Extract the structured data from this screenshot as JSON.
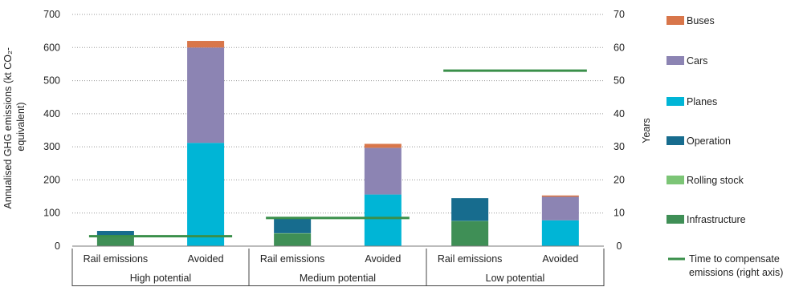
{
  "chart_data": {
    "type": "bar",
    "stacked": true,
    "groups": [
      "High potential",
      "Medium potential",
      "Low potential"
    ],
    "categories": [
      "Rail emissions",
      "Avoided"
    ],
    "ylabel": "Annualised GHG emissions (kt CO₂-equivalent)",
    "ylabel_lines": [
      "Annualised GHG emissions (kt CO₂-",
      "equivalent)"
    ],
    "y2label": "Years",
    "ylim": [
      0,
      700
    ],
    "y_ticks": [
      0,
      100,
      200,
      300,
      400,
      500,
      600,
      700
    ],
    "y2lim": [
      0,
      70
    ],
    "y2_ticks": [
      0,
      10,
      20,
      30,
      40,
      50,
      60,
      70
    ],
    "grid": true,
    "legend_position": "right",
    "series": [
      {
        "name": "Infrastructure",
        "color": "#3f8f56",
        "values": [
          [
            30,
            0
          ],
          [
            38,
            0
          ],
          [
            75,
            0
          ]
        ]
      },
      {
        "name": "Rolling stock",
        "color": "#7cc576",
        "values": [
          [
            1,
            0
          ],
          [
            1,
            0
          ],
          [
            1,
            0
          ]
        ]
      },
      {
        "name": "Operation",
        "color": "#176c8e",
        "values": [
          [
            15,
            0
          ],
          [
            49,
            0
          ],
          [
            69,
            0
          ]
        ]
      },
      {
        "name": "Planes",
        "color": "#00b5d6",
        "values": [
          [
            0,
            312
          ],
          [
            0,
            156
          ],
          [
            0,
            78
          ]
        ]
      },
      {
        "name": "Cars",
        "color": "#8c84b3",
        "values": [
          [
            0,
            288
          ],
          [
            0,
            141
          ],
          [
            0,
            71
          ]
        ]
      },
      {
        "name": "Buses",
        "color": "#d8764a",
        "values": [
          [
            0,
            20
          ],
          [
            0,
            12
          ],
          [
            0,
            4
          ]
        ]
      }
    ],
    "line_series": {
      "name": "Time to compensate emissions (right axis)",
      "name_lines": [
        "Time to compensate",
        "emissions (right axis)"
      ],
      "color": "#3a8f4a",
      "axis": "right",
      "values": [
        3,
        8.5,
        53
      ]
    },
    "legend_order": [
      "Buses",
      "Cars",
      "Planes",
      "Operation",
      "Rolling stock",
      "Infrastructure"
    ]
  }
}
